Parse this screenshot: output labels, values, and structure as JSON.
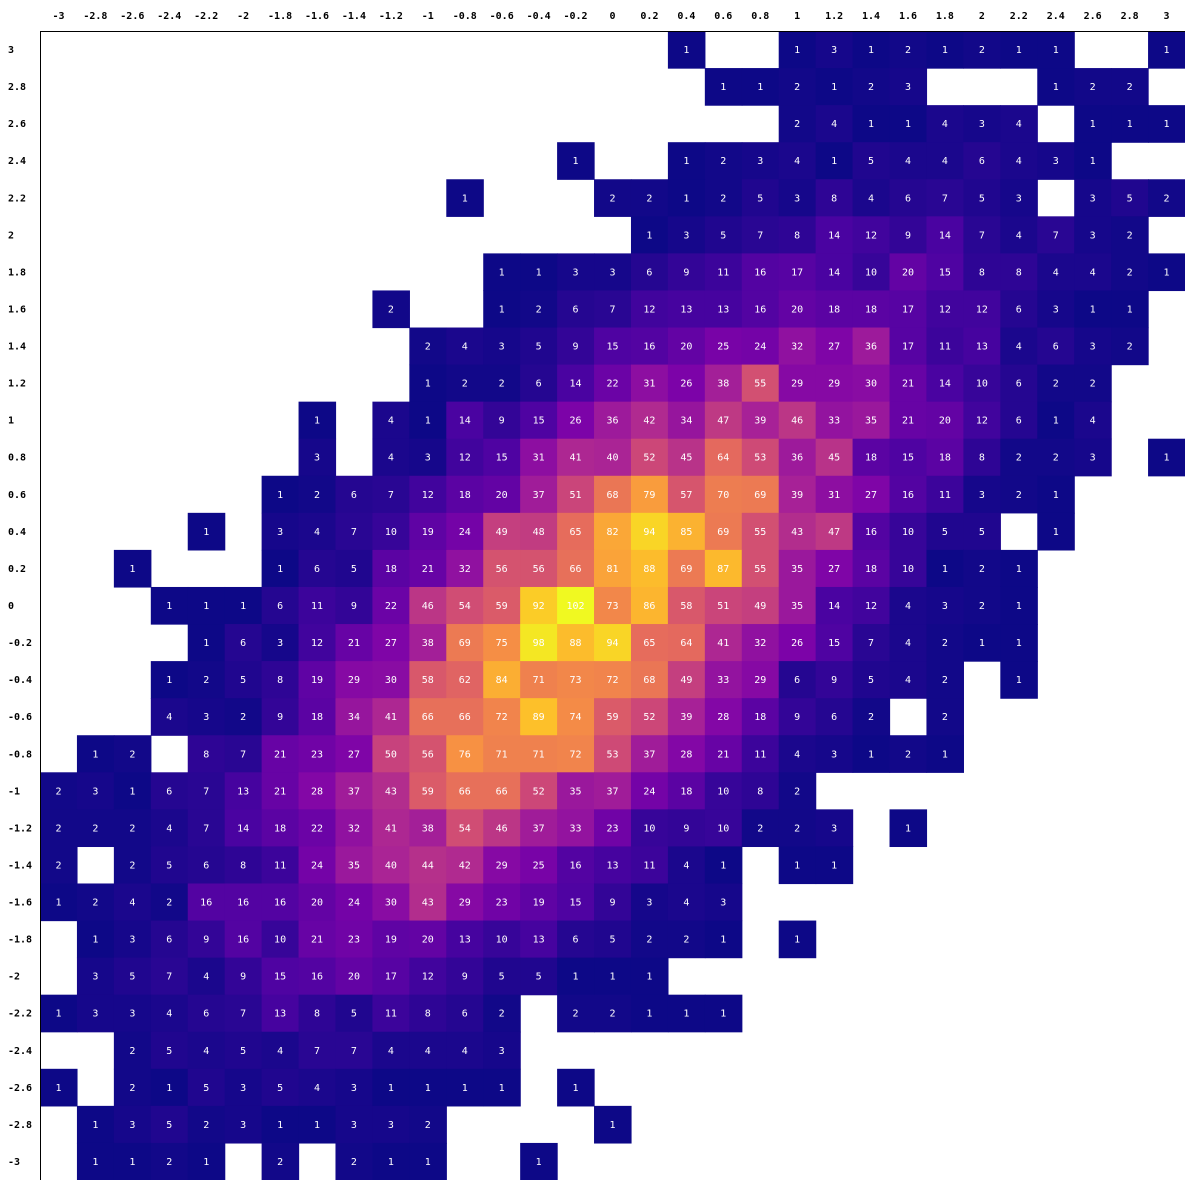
{
  "chart_data": {
    "type": "heatmap",
    "title": "",
    "xlabel": "",
    "ylabel": "",
    "x_ticks": [
      "-3",
      "-2.8",
      "-2.6",
      "-2.4",
      "-2.2",
      "-2",
      "-1.8",
      "-1.6",
      "-1.4",
      "-1.2",
      "-1",
      "-0.8",
      "-0.6",
      "-0.4",
      "-0.2",
      "0",
      "0.2",
      "0.4",
      "0.6",
      "0.8",
      "1",
      "1.2",
      "1.4",
      "1.6",
      "1.8",
      "2",
      "2.2",
      "2.4",
      "2.6",
      "2.8",
      "3"
    ],
    "y_ticks": [
      "3",
      "2.8",
      "2.6",
      "2.4",
      "2.2",
      "2",
      "1.8",
      "1.6",
      "1.4",
      "1.2",
      "1",
      "0.8",
      "0.6",
      "0.4",
      "0.2",
      "0",
      "-0.2",
      "-0.4",
      "-0.6",
      "-0.8",
      "-1",
      "-1.2",
      "-1.4",
      "-1.6",
      "-1.8",
      "-2",
      "-2.2",
      "-2.4",
      "-2.6",
      "-2.8",
      "-3"
    ],
    "colormap": "plasma",
    "vmin": 1,
    "vmax": 102,
    "empty_color": "#ffffff",
    "rows": [
      [
        0,
        0,
        0,
        0,
        0,
        0,
        0,
        0,
        0,
        0,
        0,
        0,
        0,
        0,
        0,
        0,
        0,
        1,
        0,
        0,
        1,
        3,
        1,
        2,
        1,
        2,
        1,
        1,
        0,
        0,
        1
      ],
      [
        0,
        0,
        0,
        0,
        0,
        0,
        0,
        0,
        0,
        0,
        0,
        0,
        0,
        0,
        0,
        0,
        0,
        0,
        1,
        1,
        2,
        1,
        2,
        3,
        0,
        0,
        0,
        1,
        2,
        2,
        0
      ],
      [
        0,
        0,
        0,
        0,
        0,
        0,
        0,
        0,
        0,
        0,
        0,
        0,
        0,
        0,
        0,
        0,
        0,
        0,
        0,
        0,
        2,
        4,
        1,
        1,
        4,
        3,
        4,
        0,
        1,
        1,
        1
      ],
      [
        0,
        0,
        0,
        0,
        0,
        0,
        0,
        0,
        0,
        0,
        0,
        0,
        0,
        0,
        1,
        0,
        0,
        1,
        2,
        3,
        4,
        1,
        5,
        4,
        4,
        6,
        4,
        3,
        1,
        0,
        0
      ],
      [
        0,
        0,
        0,
        0,
        0,
        0,
        0,
        0,
        0,
        0,
        0,
        1,
        0,
        0,
        0,
        2,
        2,
        1,
        2,
        5,
        3,
        8,
        4,
        6,
        7,
        5,
        3,
        0,
        3,
        5,
        2
      ],
      [
        0,
        0,
        0,
        0,
        0,
        0,
        0,
        0,
        0,
        0,
        0,
        0,
        0,
        0,
        0,
        0,
        1,
        3,
        5,
        7,
        8,
        14,
        12,
        9,
        14,
        7,
        4,
        7,
        3,
        2,
        0
      ],
      [
        0,
        0,
        0,
        0,
        0,
        0,
        0,
        0,
        0,
        0,
        0,
        0,
        1,
        1,
        3,
        3,
        6,
        9,
        11,
        16,
        17,
        14,
        10,
        20,
        15,
        8,
        8,
        4,
        4,
        2,
        1
      ],
      [
        0,
        0,
        0,
        0,
        0,
        0,
        0,
        0,
        0,
        2,
        0,
        0,
        1,
        2,
        6,
        7,
        12,
        13,
        13,
        16,
        20,
        18,
        18,
        17,
        12,
        12,
        6,
        3,
        1,
        1,
        0
      ],
      [
        0,
        0,
        0,
        0,
        0,
        0,
        0,
        0,
        0,
        0,
        2,
        4,
        3,
        5,
        9,
        15,
        16,
        20,
        25,
        24,
        32,
        27,
        36,
        17,
        11,
        13,
        4,
        6,
        3,
        2,
        0
      ],
      [
        0,
        0,
        0,
        0,
        0,
        0,
        0,
        0,
        0,
        0,
        1,
        2,
        2,
        6,
        14,
        22,
        31,
        26,
        38,
        55,
        29,
        29,
        30,
        21,
        14,
        10,
        6,
        2,
        2,
        0,
        0
      ],
      [
        0,
        0,
        0,
        0,
        0,
        0,
        0,
        1,
        0,
        4,
        1,
        14,
        9,
        15,
        26,
        36,
        42,
        34,
        47,
        39,
        46,
        33,
        35,
        21,
        20,
        12,
        6,
        1,
        4,
        0,
        0
      ],
      [
        0,
        0,
        0,
        0,
        0,
        0,
        0,
        3,
        0,
        4,
        3,
        12,
        15,
        31,
        41,
        40,
        52,
        45,
        64,
        53,
        36,
        45,
        18,
        15,
        18,
        8,
        2,
        2,
        3,
        0,
        1
      ],
      [
        0,
        0,
        0,
        0,
        0,
        0,
        1,
        2,
        6,
        7,
        12,
        18,
        20,
        37,
        51,
        68,
        79,
        57,
        70,
        69,
        39,
        31,
        27,
        16,
        11,
        3,
        2,
        1,
        0,
        0,
        0
      ],
      [
        0,
        0,
        0,
        0,
        1,
        0,
        3,
        4,
        7,
        10,
        19,
        24,
        49,
        48,
        65,
        82,
        94,
        85,
        69,
        55,
        43,
        47,
        16,
        10,
        5,
        5,
        0,
        1,
        0,
        0,
        0
      ],
      [
        0,
        0,
        1,
        0,
        0,
        0,
        1,
        6,
        5,
        18,
        21,
        32,
        56,
        56,
        66,
        81,
        88,
        69,
        87,
        55,
        35,
        27,
        18,
        10,
        1,
        2,
        1,
        0,
        0,
        0,
        0
      ],
      [
        0,
        0,
        0,
        1,
        1,
        1,
        6,
        11,
        9,
        22,
        46,
        54,
        59,
        92,
        102,
        73,
        86,
        58,
        51,
        49,
        35,
        14,
        12,
        4,
        3,
        2,
        1,
        0,
        0,
        0,
        0
      ],
      [
        0,
        0,
        0,
        0,
        1,
        6,
        3,
        12,
        21,
        27,
        38,
        69,
        75,
        98,
        88,
        94,
        65,
        64,
        41,
        32,
        26,
        15,
        7,
        4,
        2,
        1,
        1,
        0,
        0,
        0,
        0
      ],
      [
        0,
        0,
        0,
        1,
        2,
        5,
        8,
        19,
        29,
        30,
        58,
        62,
        84,
        71,
        73,
        72,
        68,
        49,
        33,
        29,
        6,
        9,
        5,
        4,
        2,
        0,
        1,
        0,
        0,
        0,
        0
      ],
      [
        0,
        0,
        0,
        4,
        3,
        2,
        9,
        18,
        34,
        41,
        66,
        66,
        72,
        89,
        74,
        59,
        52,
        39,
        28,
        18,
        9,
        6,
        2,
        0,
        2,
        0,
        0,
        0,
        0,
        0,
        0
      ],
      [
        0,
        1,
        2,
        0,
        8,
        7,
        21,
        23,
        27,
        50,
        56,
        76,
        71,
        71,
        72,
        53,
        37,
        28,
        21,
        11,
        4,
        3,
        1,
        2,
        1,
        0,
        0,
        0,
        0,
        0,
        0
      ],
      [
        2,
        3,
        1,
        6,
        7,
        13,
        21,
        28,
        37,
        43,
        59,
        66,
        66,
        52,
        35,
        37,
        24,
        18,
        10,
        8,
        2,
        0,
        0,
        0,
        0,
        0,
        0,
        0,
        0,
        0,
        0
      ],
      [
        2,
        2,
        2,
        4,
        7,
        14,
        18,
        22,
        32,
        41,
        38,
        54,
        46,
        37,
        33,
        23,
        10,
        9,
        10,
        2,
        2,
        3,
        0,
        1,
        0,
        0,
        0,
        0,
        0,
        0,
        0
      ],
      [
        2,
        0,
        2,
        5,
        6,
        8,
        11,
        24,
        35,
        40,
        44,
        42,
        29,
        25,
        16,
        13,
        11,
        4,
        1,
        0,
        1,
        1,
        0,
        0,
        0,
        0,
        0,
        0,
        0,
        0,
        0
      ],
      [
        1,
        2,
        4,
        2,
        16,
        16,
        16,
        20,
        24,
        30,
        43,
        29,
        23,
        19,
        15,
        9,
        3,
        4,
        3,
        0,
        0,
        0,
        0,
        0,
        0,
        0,
        0,
        0,
        0,
        0,
        0
      ],
      [
        0,
        1,
        3,
        6,
        9,
        16,
        10,
        21,
        23,
        19,
        20,
        13,
        10,
        13,
        6,
        5,
        2,
        2,
        1,
        0,
        1,
        0,
        0,
        0,
        0,
        0,
        0,
        0,
        0,
        0,
        0
      ],
      [
        0,
        3,
        5,
        7,
        4,
        9,
        15,
        16,
        20,
        17,
        12,
        9,
        5,
        5,
        1,
        1,
        1,
        0,
        0,
        0,
        0,
        0,
        0,
        0,
        0,
        0,
        0,
        0,
        0,
        0,
        0
      ],
      [
        1,
        3,
        3,
        4,
        6,
        7,
        13,
        8,
        5,
        11,
        8,
        6,
        2,
        0,
        2,
        2,
        1,
        1,
        1,
        0,
        0,
        0,
        0,
        0,
        0,
        0,
        0,
        0,
        0,
        0,
        0
      ],
      [
        0,
        0,
        2,
        5,
        4,
        5,
        4,
        7,
        7,
        4,
        4,
        4,
        3,
        0,
        0,
        0,
        0,
        0,
        0,
        0,
        0,
        0,
        0,
        0,
        0,
        0,
        0,
        0,
        0,
        0,
        0
      ],
      [
        1,
        0,
        2,
        1,
        5,
        3,
        5,
        4,
        3,
        1,
        1,
        1,
        1,
        0,
        1,
        0,
        0,
        0,
        0,
        0,
        0,
        0,
        0,
        0,
        0,
        0,
        0,
        0,
        0,
        0,
        0
      ],
      [
        0,
        1,
        3,
        5,
        2,
        3,
        1,
        1,
        3,
        3,
        2,
        0,
        0,
        0,
        0,
        1,
        0,
        0,
        0,
        0,
        0,
        0,
        0,
        0,
        0,
        0,
        0,
        0,
        0,
        0,
        0
      ],
      [
        0,
        1,
        1,
        2,
        1,
        0,
        2,
        0,
        2,
        1,
        1,
        0,
        0,
        1,
        0,
        0,
        0,
        0,
        0,
        0,
        0,
        0,
        0,
        0,
        0,
        0,
        0,
        0,
        0,
        0,
        0
      ]
    ]
  }
}
